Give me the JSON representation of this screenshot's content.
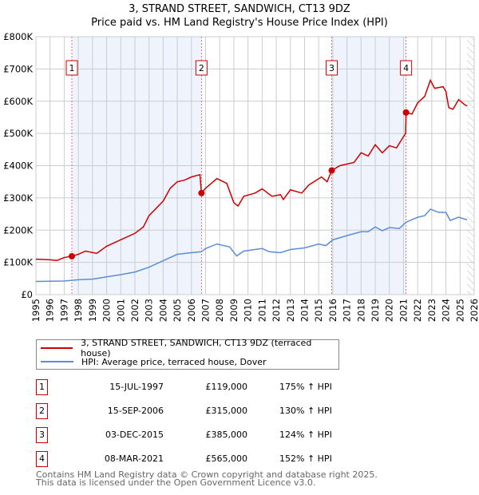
{
  "chart_data": {
    "type": "line",
    "title": "3, STRAND STREET, SANDWICH, CT13 9DZ",
    "subtitle": "Price paid vs. HM Land Registry's House Price Index (HPI)",
    "ylim": [
      0,
      800000
    ],
    "xlim": [
      1995,
      2026
    ],
    "yticks": [
      {
        "v": 0,
        "label": "£0"
      },
      {
        "v": 100000,
        "label": "£100K"
      },
      {
        "v": 200000,
        "label": "£200K"
      },
      {
        "v": 300000,
        "label": "£300K"
      },
      {
        "v": 400000,
        "label": "£400K"
      },
      {
        "v": 500000,
        "label": "£500K"
      },
      {
        "v": 600000,
        "label": "£600K"
      },
      {
        "v": 700000,
        "label": "£700K"
      },
      {
        "v": 800000,
        "label": "£800K"
      }
    ],
    "xticks": [
      "1995",
      "1996",
      "1997",
      "1998",
      "1999",
      "2000",
      "2001",
      "2002",
      "2003",
      "2004",
      "2005",
      "2006",
      "2007",
      "2008",
      "2009",
      "2010",
      "2011",
      "2012",
      "2013",
      "2014",
      "2015",
      "2016",
      "2017",
      "2018",
      "2019",
      "2020",
      "2021",
      "2022",
      "2023",
      "2024",
      "2025",
      "2026"
    ],
    "series": [
      {
        "name": "3, STRAND STREET, SANDWICH, CT13 9DZ (terraced house)",
        "color": "#cc0000",
        "x": [
          1995,
          1996,
          1996.5,
          1997,
          1997.54,
          1998,
          1998.5,
          1999.3,
          2000,
          2001,
          2002,
          2002.6,
          2003,
          2004,
          2004.5,
          2005,
          2005.5,
          2006,
          2006.6,
          2006.71,
          2007,
          2007.8,
          2008.5,
          2009,
          2009.3,
          2009.7,
          2010.5,
          2011,
          2011.7,
          2012.3,
          2012.5,
          2013,
          2013.8,
          2014.3,
          2015.2,
          2015.6,
          2015.92,
          2016.5,
          2017.5,
          2018,
          2018.5,
          2019,
          2019.5,
          2020,
          2020.5,
          2021,
          2021.15,
          2021.18,
          2021.6,
          2022,
          2022.5,
          2022.9,
          2023.2,
          2023.8,
          2024,
          2024.2,
          2024.5,
          2024.9,
          2025.3,
          2025.5
        ],
        "y": [
          110000,
          108000,
          106000,
          115000,
          119000,
          125000,
          135000,
          128000,
          150000,
          170000,
          190000,
          210000,
          245000,
          290000,
          330000,
          350000,
          355000,
          365000,
          372000,
          315000,
          330000,
          360000,
          345000,
          285000,
          275000,
          305000,
          315000,
          328000,
          305000,
          310000,
          295000,
          325000,
          315000,
          340000,
          365000,
          350000,
          385000,
          400000,
          410000,
          440000,
          430000,
          465000,
          440000,
          462000,
          455000,
          490000,
          500000,
          565000,
          560000,
          595000,
          615000,
          665000,
          640000,
          645000,
          630000,
          580000,
          575000,
          605000,
          590000,
          585000
        ]
      },
      {
        "name": "HPI: Average price, terraced house, Dover",
        "color": "#5b8ed6",
        "x": [
          1995,
          1997,
          1998,
          1999,
          2000,
          2001,
          2002,
          2003,
          2004,
          2005,
          2006,
          2006.7,
          2007,
          2007.8,
          2008.7,
          2009.2,
          2009.7,
          2010.5,
          2011,
          2011.5,
          2012.3,
          2013,
          2014,
          2015,
          2015.5,
          2016,
          2017,
          2018,
          2018.5,
          2019,
          2019.5,
          2020,
          2020.7,
          2021.2,
          2022,
          2022.5,
          2022.9,
          2023.5,
          2024,
          2024.3,
          2024.9,
          2025.5
        ],
        "y": [
          41000,
          42000,
          46000,
          48000,
          55000,
          62000,
          70000,
          85000,
          105000,
          125000,
          130000,
          133000,
          143000,
          157000,
          148000,
          120000,
          135000,
          140000,
          143000,
          133000,
          130000,
          140000,
          145000,
          157000,
          152000,
          170000,
          183000,
          195000,
          195000,
          210000,
          198000,
          208000,
          205000,
          225000,
          240000,
          245000,
          265000,
          255000,
          255000,
          230000,
          240000,
          232000
        ]
      }
    ],
    "sales": [
      {
        "n": "1",
        "x": 1997.54,
        "date": "15-JUL-1997",
        "price": 119000,
        "price_label": "£119,000",
        "hpi": "175% ↑ HPI"
      },
      {
        "n": "2",
        "x": 2006.71,
        "date": "15-SEP-2006",
        "price": 315000,
        "price_label": "£315,000",
        "hpi": "130% ↑ HPI"
      },
      {
        "n": "3",
        "x": 2015.92,
        "date": "03-DEC-2015",
        "price": 385000,
        "price_label": "£385,000",
        "hpi": "124% ↑ HPI"
      },
      {
        "n": "4",
        "x": 2021.18,
        "date": "08-MAR-2021",
        "price": 565000,
        "price_label": "£565,000",
        "hpi": "152% ↑ HPI"
      }
    ],
    "shaded": [
      [
        1997.54,
        2006.71
      ],
      [
        2015.92,
        2021.18
      ]
    ],
    "forecast_from": 2025.5,
    "legend_position": "bottom"
  },
  "footer": {
    "line1": "Contains HM Land Registry data © Crown copyright and database right 2025.",
    "line2": "This data is licensed under the Open Government Licence v3.0."
  }
}
